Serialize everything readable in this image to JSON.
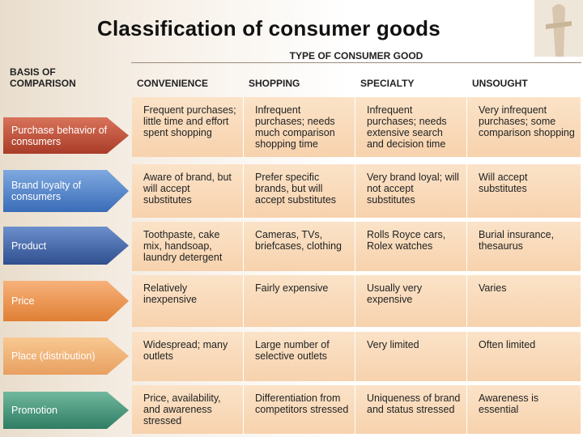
{
  "header": {
    "title": "Classification of consumer goods",
    "basis": "BASIS OF COMPARISON",
    "type": "TYPE OF CONSUMER GOOD",
    "columns": [
      "CONVENIENCE",
      "SHOPPING",
      "SPECIALTY",
      "UNSOUGHT"
    ]
  },
  "rows": [
    {
      "label": "Purchase behavior of consumers",
      "cells": [
        "Frequent purchases; little time and effort spent shopping",
        "Infrequent purchases; needs much comparison shopping time",
        "Infrequent purchases; needs extensive search and decision time",
        "Very infrequent purchases; some comparison shopping"
      ]
    },
    {
      "label": "Brand loyalty of consumers",
      "cells": [
        "Aware of brand, but will accept substitutes",
        "Prefer specific brands, but will accept substitutes",
        "Very brand loyal; will not accept substitutes",
        "Will accept substitutes"
      ]
    },
    {
      "label": "Product",
      "cells": [
        "Toothpaste, cake mix, handsoap, laundry detergent",
        "Cameras, TVs, briefcases, clothing",
        "Rolls Royce cars, Rolex watches",
        "Burial insurance, thesaurus"
      ]
    },
    {
      "label": "Price",
      "cells": [
        "Relatively inexpensive",
        "Fairly expensive",
        "Usually very expensive",
        "Varies"
      ]
    },
    {
      "label": "Place (distribution)",
      "cells": [
        "Widespread; many outlets",
        "Large number of selective outlets",
        "Very limited",
        "Often limited"
      ]
    },
    {
      "label": "Promotion",
      "cells": [
        "Price, availability, and awareness stressed",
        "Differentiation from competitors stressed",
        "Uniqueness of brand and status stressed",
        "Awareness is essential"
      ]
    }
  ]
}
